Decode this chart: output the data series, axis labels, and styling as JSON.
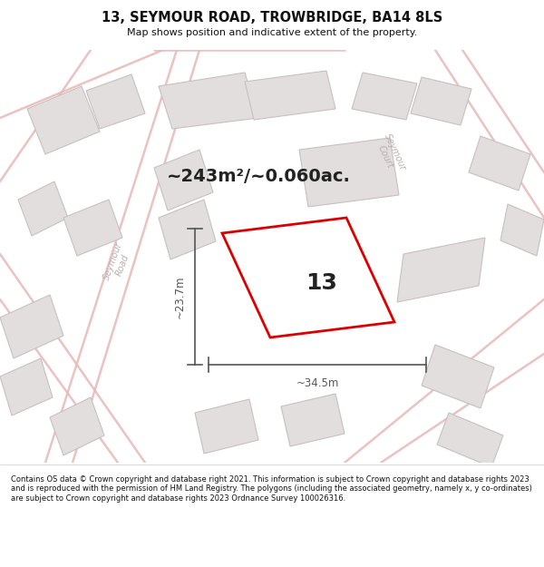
{
  "title": "13, SEYMOUR ROAD, TROWBRIDGE, BA14 8LS",
  "subtitle": "Map shows position and indicative extent of the property.",
  "area_text": "~243m²/~0.060ac.",
  "number_label": "13",
  "dim_horizontal": "~34.5m",
  "dim_vertical": "~23.7m",
  "footer_text": "Contains OS data © Crown copyright and database right 2021. This information is subject to Crown copyright and database rights 2023 and is reproduced with the permission of HM Land Registry. The polygons (including the associated geometry, namely x, y co-ordinates) are subject to Crown copyright and database rights 2023 Ordnance Survey 100026316.",
  "map_bg": "#f7f5f5",
  "plot_color": "#dd0000",
  "road_color": "#e8b8b8",
  "road_lw": 1.8,
  "building_fill": "#e2dede",
  "building_stroke": "#c8c0c0",
  "label_color": "#bbadad",
  "dim_color": "#555555",
  "area_color": "#222222",
  "num_color": "#222222"
}
